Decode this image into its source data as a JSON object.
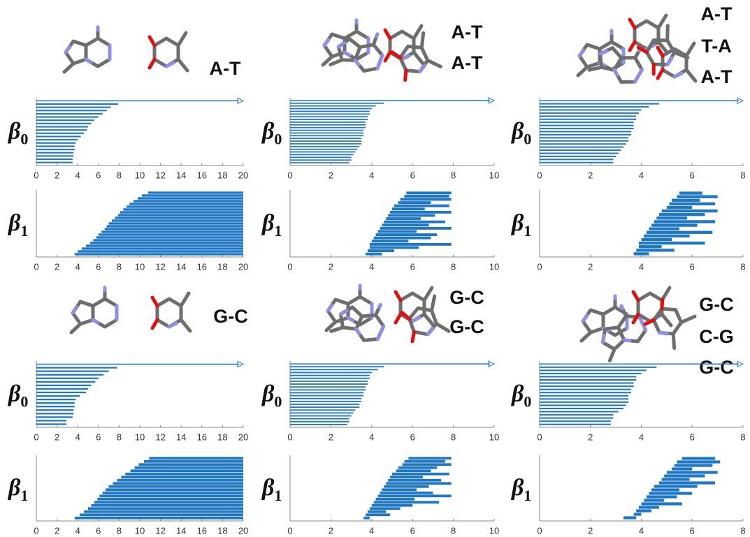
{
  "pair_labels": [
    [
      "A-T"
    ],
    [
      "A-T",
      "A-T"
    ],
    [
      "A-T",
      "T-A",
      "A-T"
    ],
    [
      "G-C"
    ],
    [
      "G-C",
      "G-C"
    ],
    [
      "G-C",
      "C-G",
      "G-C"
    ]
  ],
  "chart_data": [
    {
      "type": "barcode",
      "ylabel": "β",
      "ylabel_subscript": "0",
      "color": "#1f77c4",
      "xlim": [
        0,
        20
      ],
      "xticks": [
        0,
        2,
        4,
        6,
        8,
        10,
        12,
        14,
        16,
        18,
        20
      ],
      "births": [
        0,
        0,
        0,
        0,
        0,
        0,
        0,
        0,
        0,
        0,
        0,
        0,
        0,
        0,
        0,
        0,
        0,
        0,
        0,
        0
      ],
      "deaths": [
        null,
        7.9,
        7.2,
        6.8,
        6.4,
        6.0,
        5.6,
        5.3,
        5.0,
        4.9,
        4.6,
        4.3,
        4.0,
        3.8,
        3.7,
        3.7,
        3.6,
        3.6,
        3.5,
        3.5
      ]
    },
    {
      "type": "barcode",
      "ylabel": "β",
      "ylabel_subscript": "1",
      "color": "#1f77c4",
      "xlim": [
        0,
        20
      ],
      "xticks": [
        0,
        2,
        4,
        6,
        8,
        10,
        12,
        14,
        16,
        18,
        20
      ],
      "births": [
        10.8,
        10.2,
        9.8,
        9.4,
        9.0,
        8.7,
        8.4,
        8.1,
        7.9,
        7.6,
        7.3,
        7.0,
        6.8,
        6.6,
        6.3,
        6.0,
        5.8,
        5.5,
        5.2,
        4.8,
        4.4,
        4.0,
        3.7
      ],
      "deaths": [
        20,
        20,
        20,
        20,
        20,
        20,
        20,
        20,
        20,
        20,
        20,
        20,
        20,
        20,
        20,
        20,
        20,
        20,
        20,
        20,
        20,
        20,
        20
      ]
    },
    {
      "type": "barcode",
      "ylabel": "β",
      "ylabel_subscript": "0",
      "color": "#1f77c4",
      "xlim": [
        0,
        10
      ],
      "xticks": [
        0,
        2,
        4,
        6,
        8,
        10
      ],
      "births": [
        0,
        0,
        0,
        0,
        0,
        0,
        0,
        0,
        0,
        0,
        0,
        0,
        0,
        0,
        0,
        0,
        0,
        0,
        0,
        0,
        0,
        0,
        0,
        0
      ],
      "deaths": [
        null,
        4.6,
        4.2,
        4.0,
        3.9,
        3.9,
        3.8,
        3.8,
        3.7,
        3.7,
        3.7,
        3.6,
        3.6,
        3.6,
        3.5,
        3.5,
        3.5,
        3.4,
        3.3,
        3.2,
        3.1,
        3.0,
        3.0,
        2.9
      ]
    },
    {
      "type": "barcode",
      "ylabel": "β",
      "ylabel_subscript": "1",
      "color": "#1f77c4",
      "xlim": [
        0,
        10
      ],
      "xticks": [
        0,
        2,
        4,
        6,
        8,
        10
      ],
      "births": [
        5.7,
        5.6,
        5.4,
        5.3,
        5.1,
        5.0,
        4.9,
        4.8,
        4.7,
        4.6,
        4.5,
        4.4,
        4.3,
        4.2,
        4.1,
        4.0,
        3.9,
        3.9,
        3.8,
        3.7
      ],
      "deaths": [
        7.9,
        7.8,
        7.9,
        6.9,
        7.8,
        6.6,
        7.9,
        7.1,
        6.4,
        7.6,
        6.8,
        7.9,
        6.2,
        7.2,
        6.9,
        5.8,
        7.9,
        6.3,
        5.1,
        4.5
      ]
    },
    {
      "type": "barcode",
      "ylabel": "β",
      "ylabel_subscript": "0",
      "color": "#1f77c4",
      "xlim": [
        0,
        8
      ],
      "xticks": [
        0,
        2,
        4,
        6,
        8
      ],
      "births": [
        0,
        0,
        0,
        0,
        0,
        0,
        0,
        0,
        0,
        0,
        0,
        0,
        0,
        0,
        0,
        0,
        0,
        0,
        0,
        0,
        0
      ],
      "deaths": [
        null,
        4.7,
        4.3,
        4.0,
        3.9,
        3.8,
        3.8,
        3.7,
        3.7,
        3.7,
        3.6,
        3.6,
        3.5,
        3.5,
        3.4,
        3.3,
        3.2,
        3.1,
        3.0,
        2.9,
        2.9
      ]
    },
    {
      "type": "barcode",
      "ylabel": "β",
      "ylabel_subscript": "1",
      "color": "#1f77c4",
      "xlim": [
        0,
        8
      ],
      "xticks": [
        0,
        2,
        4,
        6,
        8
      ],
      "births": [
        5.5,
        5.4,
        5.2,
        5.1,
        5.0,
        4.8,
        4.7,
        4.6,
        4.5,
        4.4,
        4.3,
        4.2,
        4.1,
        4.0,
        3.9,
        3.9,
        3.8,
        3.7
      ],
      "deaths": [
        6.4,
        7.0,
        6.3,
        6.9,
        6.0,
        7.0,
        6.5,
        5.8,
        6.9,
        6.2,
        5.5,
        6.8,
        5.9,
        5.2,
        6.5,
        4.8,
        5.3,
        4.3
      ]
    },
    {
      "type": "barcode",
      "ylabel": "β",
      "ylabel_subscript": "0",
      "color": "#1f77c4",
      "xlim": [
        0,
        20
      ],
      "xticks": [
        0,
        2,
        4,
        6,
        8,
        10,
        12,
        14,
        16,
        18,
        20
      ],
      "births": [
        0,
        0,
        0,
        0,
        0,
        0,
        0,
        0,
        0,
        0,
        0,
        0,
        0,
        0,
        0,
        0,
        0,
        0
      ],
      "deaths": [
        null,
        7.8,
        7.0,
        6.5,
        6.0,
        5.7,
        5.3,
        5.0,
        4.8,
        4.2,
        3.8,
        3.7,
        3.7,
        3.6,
        3.6,
        3.5,
        2.9,
        2.9
      ]
    },
    {
      "type": "barcode",
      "ylabel": "β",
      "ylabel_subscript": "1",
      "color": "#1f77c4",
      "xlim": [
        0,
        20
      ],
      "xticks": [
        0,
        2,
        4,
        6,
        8,
        10,
        12,
        14,
        16,
        18,
        20
      ],
      "births": [
        10.9,
        10.4,
        9.9,
        9.5,
        9.1,
        8.6,
        8.2,
        7.8,
        7.4,
        7.0,
        6.7,
        6.4,
        6.1,
        5.9,
        5.6,
        5.3,
        5.0,
        4.6,
        4.2,
        3.7
      ],
      "deaths": [
        20,
        20,
        20,
        20,
        20,
        20,
        20,
        20,
        20,
        20,
        20,
        20,
        20,
        20,
        20,
        20,
        20,
        20,
        20,
        20
      ]
    },
    {
      "type": "barcode",
      "ylabel": "β",
      "ylabel_subscript": "0",
      "color": "#1f77c4",
      "xlim": [
        0,
        10
      ],
      "xticks": [
        0,
        2,
        4,
        6,
        8,
        10
      ],
      "births": [
        0,
        0,
        0,
        0,
        0,
        0,
        0,
        0,
        0,
        0,
        0,
        0,
        0,
        0,
        0,
        0,
        0,
        0,
        0,
        0,
        0,
        0
      ],
      "deaths": [
        null,
        4.6,
        4.3,
        4.0,
        3.9,
        3.9,
        3.8,
        3.8,
        3.7,
        3.7,
        3.6,
        3.6,
        3.5,
        3.5,
        3.4,
        3.4,
        3.2,
        3.1,
        3.0,
        2.9,
        2.9,
        2.8
      ]
    },
    {
      "type": "barcode",
      "ylabel": "β",
      "ylabel_subscript": "1",
      "color": "#1f77c4",
      "xlim": [
        0,
        10
      ],
      "xticks": [
        0,
        2,
        4,
        6,
        8,
        10
      ],
      "births": [
        5.8,
        5.6,
        5.5,
        5.3,
        5.2,
        5.0,
        4.9,
        4.8,
        4.7,
        4.6,
        4.5,
        4.4,
        4.3,
        4.2,
        4.1,
        4.0,
        3.9,
        3.8,
        3.7,
        3.6
      ],
      "deaths": [
        7.9,
        7.6,
        7.9,
        7.2,
        6.9,
        7.8,
        6.5,
        7.4,
        7.9,
        6.8,
        6.2,
        7.0,
        7.9,
        6.1,
        7.3,
        6.0,
        5.4,
        4.7,
        4.9,
        3.9
      ]
    },
    {
      "type": "barcode",
      "ylabel": "β",
      "ylabel_subscript": "0",
      "color": "#1f77c4",
      "xlim": [
        0,
        8
      ],
      "xticks": [
        0,
        2,
        4,
        6,
        8
      ],
      "births": [
        0,
        0,
        0,
        0,
        0,
        0,
        0,
        0,
        0,
        0,
        0,
        0,
        0,
        0,
        0,
        0,
        0,
        0,
        0,
        0
      ],
      "deaths": [
        null,
        4.6,
        4.2,
        4.0,
        3.8,
        3.8,
        3.7,
        3.7,
        3.6,
        3.6,
        3.5,
        3.5,
        3.5,
        3.4,
        3.3,
        3.1,
        2.9,
        2.9,
        2.8,
        2.8
      ]
    },
    {
      "type": "barcode",
      "ylabel": "β",
      "ylabel_subscript": "1",
      "color": "#1f77c4",
      "xlim": [
        0,
        8
      ],
      "xticks": [
        0,
        2,
        4,
        6,
        8
      ],
      "births": [
        5.6,
        5.4,
        5.3,
        5.2,
        5.0,
        4.9,
        4.8,
        4.7,
        4.5,
        4.4,
        4.3,
        4.2,
        4.1,
        4.0,
        3.9,
        3.8,
        3.7,
        3.3
      ],
      "deaths": [
        6.9,
        7.1,
        6.8,
        6.0,
        7.0,
        6.5,
        5.9,
        6.9,
        6.2,
        5.5,
        6.0,
        5.4,
        4.9,
        5.6,
        4.7,
        4.4,
        4.0,
        3.8
      ]
    }
  ]
}
